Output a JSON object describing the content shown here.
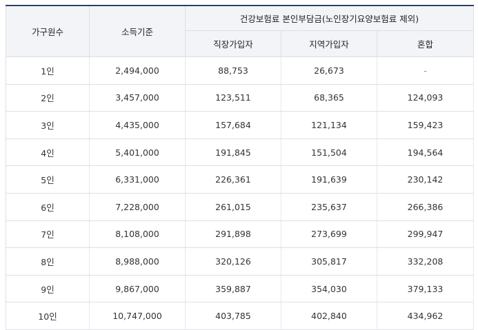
{
  "table": {
    "headers": {
      "household_size": "가구원수",
      "income_standard": "소득기준",
      "premium_group": "건강보험료 본인부담금(노인장기요양보험료 제외)",
      "employee": "직장가입자",
      "regional": "지역가입자",
      "mixed": "혼합"
    },
    "rows": [
      {
        "size": "1인",
        "income": "2,494,000",
        "employee": "88,753",
        "regional": "26,673",
        "mixed": "-"
      },
      {
        "size": "2인",
        "income": "3,457,000",
        "employee": "123,511",
        "regional": "68,365",
        "mixed": "124,093"
      },
      {
        "size": "3인",
        "income": "4,435,000",
        "employee": "157,684",
        "regional": "121,134",
        "mixed": "159,423"
      },
      {
        "size": "4인",
        "income": "5,401,000",
        "employee": "191,845",
        "regional": "151,504",
        "mixed": "194,564"
      },
      {
        "size": "5인",
        "income": "6,331,000",
        "employee": "226,361",
        "regional": "191,639",
        "mixed": "230,142"
      },
      {
        "size": "6인",
        "income": "7,228,000",
        "employee": "261,015",
        "regional": "235,637",
        "mixed": "266,386"
      },
      {
        "size": "7인",
        "income": "8,108,000",
        "employee": "291,898",
        "regional": "273,699",
        "mixed": "299,947"
      },
      {
        "size": "8인",
        "income": "8,988,000",
        "employee": "320,126",
        "regional": "305,817",
        "mixed": "332,208"
      },
      {
        "size": "9인",
        "income": "9,867,000",
        "employee": "359,887",
        "regional": "354,030",
        "mixed": "379,133"
      },
      {
        "size": "10인",
        "income": "10,747,000",
        "employee": "403,785",
        "regional": "402,840",
        "mixed": "434,962"
      }
    ]
  }
}
